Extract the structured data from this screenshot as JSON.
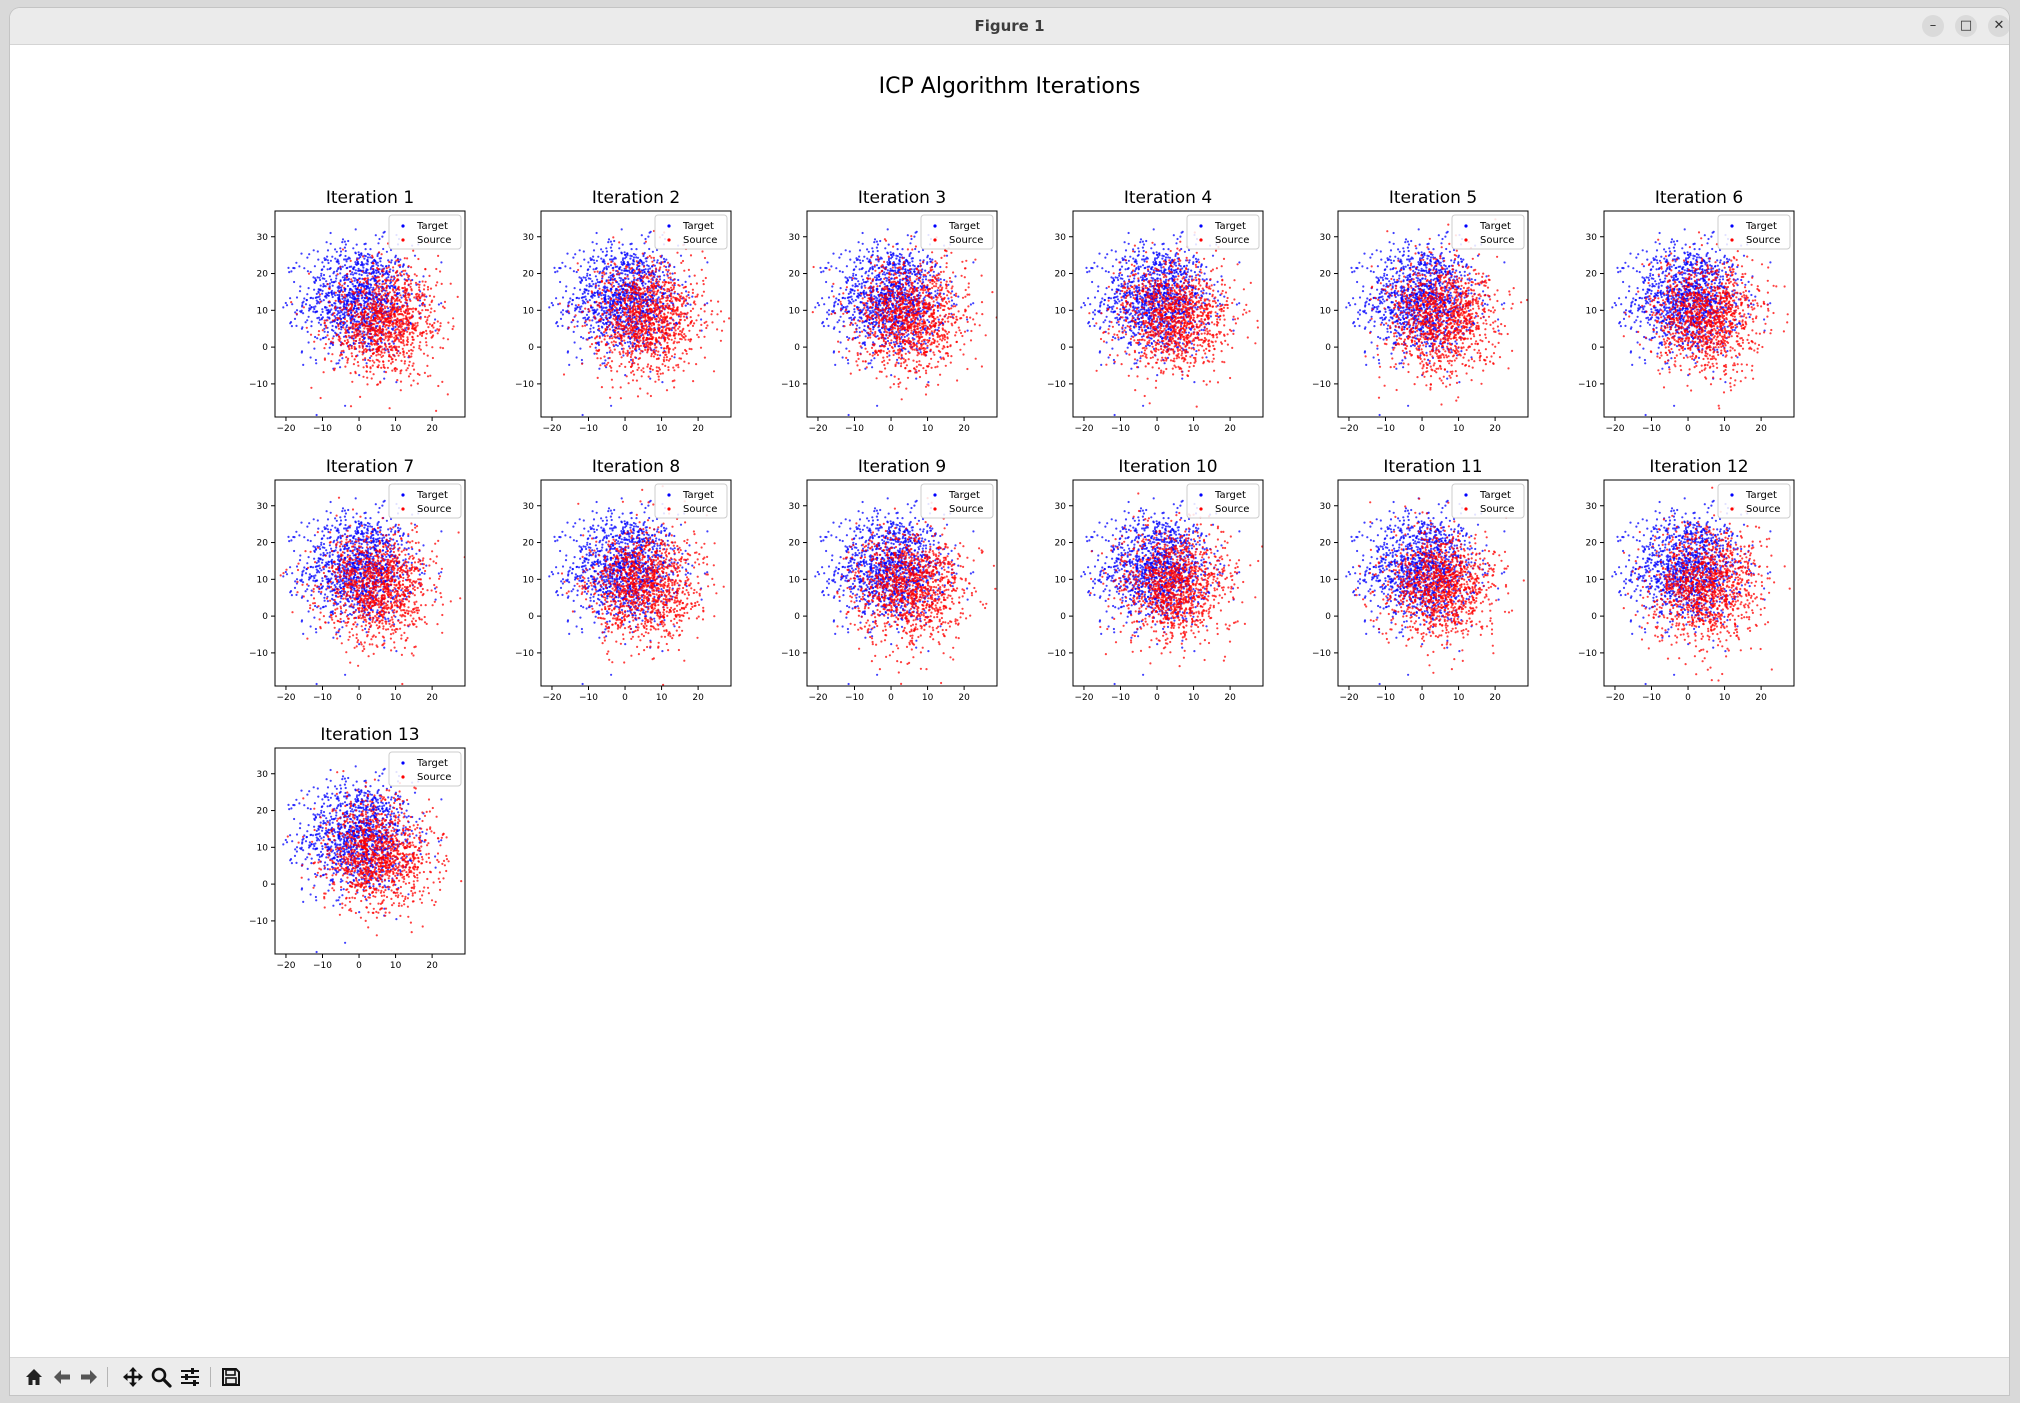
{
  "window": {
    "title": "Figure 1"
  },
  "window_controls": {
    "minimize": "–",
    "maximize": "□",
    "close": "✕"
  },
  "figure": {
    "suptitle": "ICP Algorithm Iterations"
  },
  "toolbar": {
    "buttons": [
      {
        "name": "home",
        "icon": "home-icon"
      },
      {
        "name": "back",
        "icon": "arrow-left-icon"
      },
      {
        "name": "forward",
        "icon": "arrow-right-icon"
      },
      {
        "name": "pan",
        "icon": "move-icon"
      },
      {
        "name": "zoom",
        "icon": "magnifier-icon"
      },
      {
        "name": "configure-subplots",
        "icon": "sliders-icon"
      },
      {
        "name": "save",
        "icon": "floppy-disk-icon"
      }
    ]
  },
  "colors": {
    "target": "#0000ff",
    "source": "#ff0000"
  },
  "chart_data": [
    {
      "type": "scatter",
      "title": "Iteration 1",
      "legend": [
        "Target",
        "Source"
      ],
      "legend_loc": "upper right",
      "xticks": [
        -20,
        -10,
        0,
        10,
        20
      ],
      "yticks": [
        -10,
        0,
        10,
        20,
        30
      ],
      "xlim": [
        -23,
        29
      ],
      "ylim": [
        -19,
        37
      ],
      "target_center": [
        0,
        13
      ],
      "source_center": [
        7,
        7
      ]
    },
    {
      "type": "scatter",
      "title": "Iteration 2",
      "legend": [
        "Target",
        "Source"
      ],
      "legend_loc": "upper right",
      "xticks": [
        -20,
        -10,
        0,
        10,
        20
      ],
      "yticks": [
        -10,
        0,
        10,
        20,
        30
      ],
      "xlim": [
        -23,
        29
      ],
      "ylim": [
        -19,
        37
      ],
      "target_center": [
        0,
        13
      ],
      "source_center": [
        6,
        8
      ]
    },
    {
      "type": "scatter",
      "title": "Iteration 3",
      "legend": [
        "Target",
        "Source"
      ],
      "legend_loc": "upper right",
      "xticks": [
        -20,
        -10,
        0,
        10,
        20
      ],
      "yticks": [
        -10,
        0,
        10,
        20,
        30
      ],
      "xlim": [
        -23,
        29
      ],
      "ylim": [
        -19,
        37
      ],
      "target_center": [
        0,
        13
      ],
      "source_center": [
        5,
        8
      ]
    },
    {
      "type": "scatter",
      "title": "Iteration 4",
      "legend": [
        "Target",
        "Source"
      ],
      "legend_loc": "upper right",
      "xticks": [
        -20,
        -10,
        0,
        10,
        20
      ],
      "yticks": [
        -10,
        0,
        10,
        20,
        30
      ],
      "xlim": [
        -23,
        29
      ],
      "ylim": [
        -19,
        37
      ],
      "target_center": [
        0,
        13
      ],
      "source_center": [
        5,
        8
      ]
    },
    {
      "type": "scatter",
      "title": "Iteration 5",
      "legend": [
        "Target",
        "Source"
      ],
      "legend_loc": "upper right",
      "xticks": [
        -20,
        -10,
        0,
        10,
        20
      ],
      "yticks": [
        -10,
        0,
        10,
        20,
        30
      ],
      "xlim": [
        -23,
        29
      ],
      "ylim": [
        -19,
        37
      ],
      "target_center": [
        0,
        13
      ],
      "source_center": [
        5,
        8
      ]
    },
    {
      "type": "scatter",
      "title": "Iteration 6",
      "legend": [
        "Target",
        "Source"
      ],
      "legend_loc": "upper right",
      "xticks": [
        -20,
        -10,
        0,
        10,
        20
      ],
      "yticks": [
        -10,
        0,
        10,
        20,
        30
      ],
      "xlim": [
        -23,
        29
      ],
      "ylim": [
        -19,
        37
      ],
      "target_center": [
        0,
        13
      ],
      "source_center": [
        5,
        8
      ]
    },
    {
      "type": "scatter",
      "title": "Iteration 7",
      "legend": [
        "Target",
        "Source"
      ],
      "legend_loc": "upper right",
      "xticks": [
        -20,
        -10,
        0,
        10,
        20
      ],
      "yticks": [
        -10,
        0,
        10,
        20,
        30
      ],
      "xlim": [
        -23,
        29
      ],
      "ylim": [
        -19,
        37
      ],
      "target_center": [
        0,
        13
      ],
      "source_center": [
        5,
        8
      ]
    },
    {
      "type": "scatter",
      "title": "Iteration 8",
      "legend": [
        "Target",
        "Source"
      ],
      "legend_loc": "upper right",
      "xticks": [
        -20,
        -10,
        0,
        10,
        20
      ],
      "yticks": [
        -10,
        0,
        10,
        20,
        30
      ],
      "xlim": [
        -23,
        29
      ],
      "ylim": [
        -19,
        37
      ],
      "target_center": [
        0,
        13
      ],
      "source_center": [
        5,
        8
      ]
    },
    {
      "type": "scatter",
      "title": "Iteration 9",
      "legend": [
        "Target",
        "Source"
      ],
      "legend_loc": "upper right",
      "xticks": [
        -20,
        -10,
        0,
        10,
        20
      ],
      "yticks": [
        -10,
        0,
        10,
        20,
        30
      ],
      "xlim": [
        -23,
        29
      ],
      "ylim": [
        -19,
        37
      ],
      "target_center": [
        0,
        13
      ],
      "source_center": [
        5,
        8
      ]
    },
    {
      "type": "scatter",
      "title": "Iteration 10",
      "legend": [
        "Target",
        "Source"
      ],
      "legend_loc": "upper right",
      "xticks": [
        -20,
        -10,
        0,
        10,
        20
      ],
      "yticks": [
        -10,
        0,
        10,
        20,
        30
      ],
      "xlim": [
        -23,
        29
      ],
      "ylim": [
        -19,
        37
      ],
      "target_center": [
        0,
        13
      ],
      "source_center": [
        5,
        8
      ]
    },
    {
      "type": "scatter",
      "title": "Iteration 11",
      "legend": [
        "Target",
        "Source"
      ],
      "legend_loc": "upper right",
      "xticks": [
        -20,
        -10,
        0,
        10,
        20
      ],
      "yticks": [
        -10,
        0,
        10,
        20,
        30
      ],
      "xlim": [
        -23,
        29
      ],
      "ylim": [
        -19,
        37
      ],
      "target_center": [
        0,
        13
      ],
      "source_center": [
        5,
        8
      ]
    },
    {
      "type": "scatter",
      "title": "Iteration 12",
      "legend": [
        "Target",
        "Source"
      ],
      "legend_loc": "upper right",
      "xticks": [
        -20,
        -10,
        0,
        10,
        20
      ],
      "yticks": [
        -10,
        0,
        10,
        20,
        30
      ],
      "xlim": [
        -23,
        29
      ],
      "ylim": [
        -19,
        37
      ],
      "target_center": [
        0,
        13
      ],
      "source_center": [
        5,
        8
      ]
    },
    {
      "type": "scatter",
      "title": "Iteration 13",
      "legend": [
        "Target",
        "Source"
      ],
      "legend_loc": "upper right",
      "xticks": [
        -20,
        -10,
        0,
        10,
        20
      ],
      "yticks": [
        -10,
        0,
        10,
        20,
        30
      ],
      "xlim": [
        -23,
        29
      ],
      "ylim": [
        -19,
        37
      ],
      "target_center": [
        0,
        13
      ],
      "source_center": [
        5,
        8
      ]
    }
  ]
}
